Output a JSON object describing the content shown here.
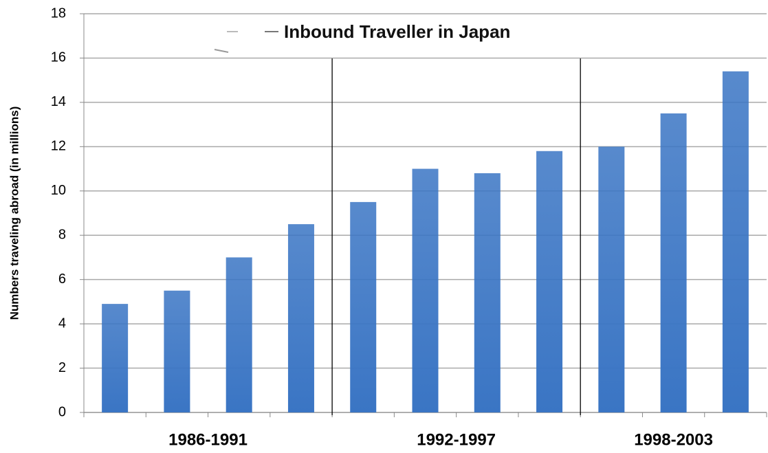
{
  "chart_data": {
    "type": "bar",
    "title": "Inbound Traveller in Japan",
    "y_label": "Numbers traveling abroad (in millions)",
    "groups": [
      "1986-1991",
      "1992-1997",
      "1998-2003"
    ],
    "categories": [
      null,
      null,
      null,
      null,
      null,
      null,
      null,
      null,
      null,
      null,
      null
    ],
    "values": [
      4.9,
      5.5,
      7.0,
      8.5,
      9.5,
      11.0,
      10.8,
      11.8,
      12.0,
      13.5,
      15.4
    ],
    "color": "#3a75c4",
    "ylim": [
      0,
      18
    ],
    "yticks": [
      0,
      2,
      4,
      6,
      8,
      10,
      12,
      14,
      16,
      18
    ],
    "grid": true
  }
}
